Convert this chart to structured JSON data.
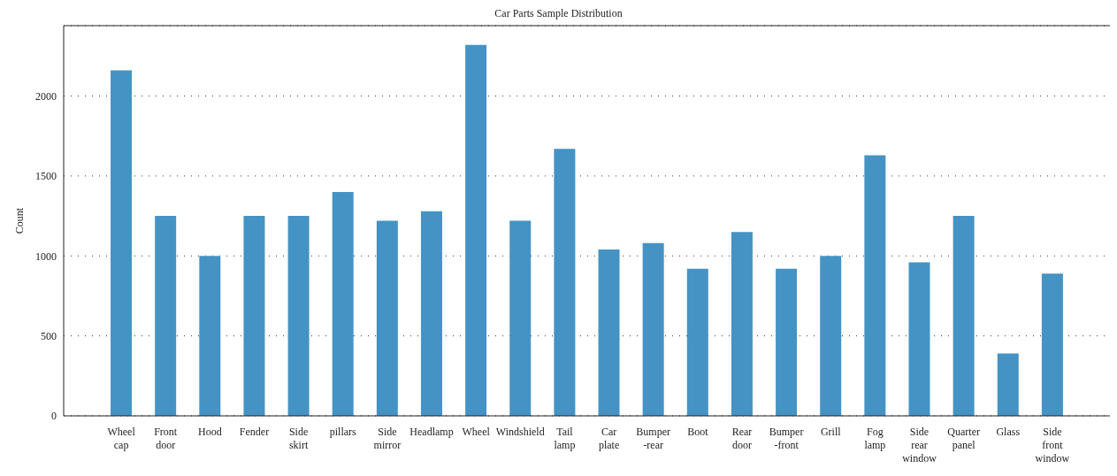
{
  "chart_data": {
    "type": "bar",
    "title": "Car Parts Sample Distribution",
    "ylabel": "Count",
    "categories": [
      "Wheel cap",
      "Front door",
      "Hood",
      "Fender",
      "Side skirt",
      "pillars",
      "Side mirror",
      "Headlamp",
      "Wheel",
      "Windshield",
      "Tail lamp",
      "Car plate",
      "Bumper -rear",
      "Boot",
      "Rear door",
      "Bumper -front",
      "Grill",
      "Fog lamp",
      "Side rear window",
      "Quarter panel",
      "Glass",
      "Side front window"
    ],
    "values": [
      2160,
      1250,
      1000,
      1250,
      1250,
      1400,
      1220,
      1280,
      2320,
      1220,
      1670,
      1040,
      1080,
      920,
      1150,
      920,
      1000,
      1630,
      960,
      1250,
      390,
      890
    ],
    "color": "#4593c5",
    "ylim": [
      0,
      2440
    ],
    "yticks": [
      0,
      500,
      1000,
      1500,
      2000
    ],
    "grid": "y"
  }
}
